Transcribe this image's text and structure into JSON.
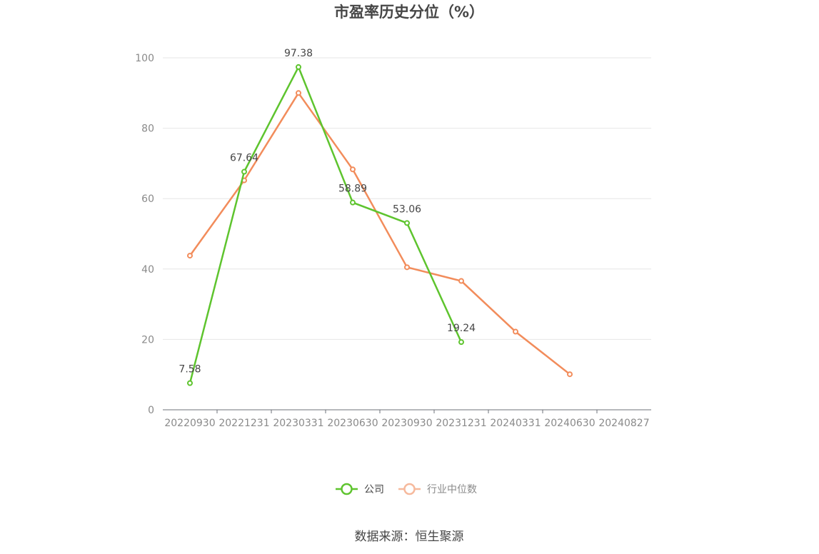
{
  "chart_data": {
    "type": "line",
    "title": "市盈率历史分位（%）",
    "categories": [
      "20220930",
      "20221231",
      "20230331",
      "20230630",
      "20230930",
      "20231231",
      "20240331",
      "20240630",
      "20240827"
    ],
    "ylim": [
      0,
      100
    ],
    "yticks": [
      0,
      20,
      40,
      60,
      80,
      100
    ],
    "grid": true,
    "legend_position": "bottom",
    "series": [
      {
        "name": "公司",
        "color": "#5ec42e",
        "values": [
          7.58,
          67.64,
          97.38,
          58.89,
          53.06,
          19.24,
          null,
          null,
          null
        ],
        "labels": [
          "7.58",
          "67.64",
          "97.38",
          "58.89",
          "53.06",
          "19.24",
          "",
          "",
          ""
        ]
      },
      {
        "name": "行业中位数",
        "color": "#f28c5b",
        "values": [
          43.8,
          65.2,
          90.0,
          68.3,
          40.5,
          36.6,
          22.2,
          10.1,
          null
        ]
      }
    ]
  },
  "source": "数据来源：恒生聚源"
}
